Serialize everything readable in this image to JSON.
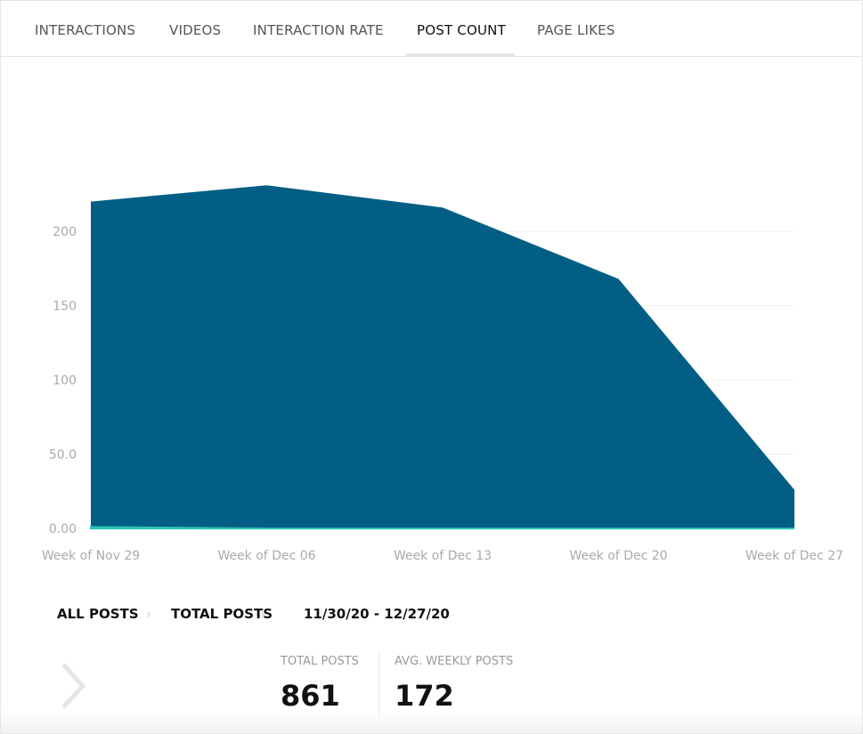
{
  "tabs": [
    "INTERACTIONS",
    "VIDEOS",
    "INTERACTION RATE",
    "POST COUNT",
    "PAGE LIKES"
  ],
  "active_tab": 3,
  "chart_data": {
    "type": "area",
    "categories": [
      "Week of Nov 29",
      "Week of Dec 06",
      "Week of Dec 13",
      "Week of Dec 20",
      "Week of Dec 27"
    ],
    "series": [
      {
        "color": "#025e84",
        "values": [
          220,
          231,
          216,
          168,
          26
        ]
      },
      {
        "color": "#2ec4b6",
        "values": [
          1,
          0,
          0,
          0,
          0
        ]
      }
    ],
    "ylim": [
      0,
      250
    ],
    "yticks": [
      {
        "value": 0,
        "label": "0.00"
      },
      {
        "value": 50,
        "label": "50.0"
      },
      100,
      150,
      200
    ],
    "grid": true
  },
  "breadcrumb": [
    "ALL POSTS",
    "TOTAL POSTS",
    "11/30/20 - 12/27/20"
  ],
  "stats": [
    {
      "label": "TOTAL POSTS",
      "value": 861
    },
    {
      "label": "AVG. WEEKLY POSTS",
      "value": 172
    }
  ]
}
